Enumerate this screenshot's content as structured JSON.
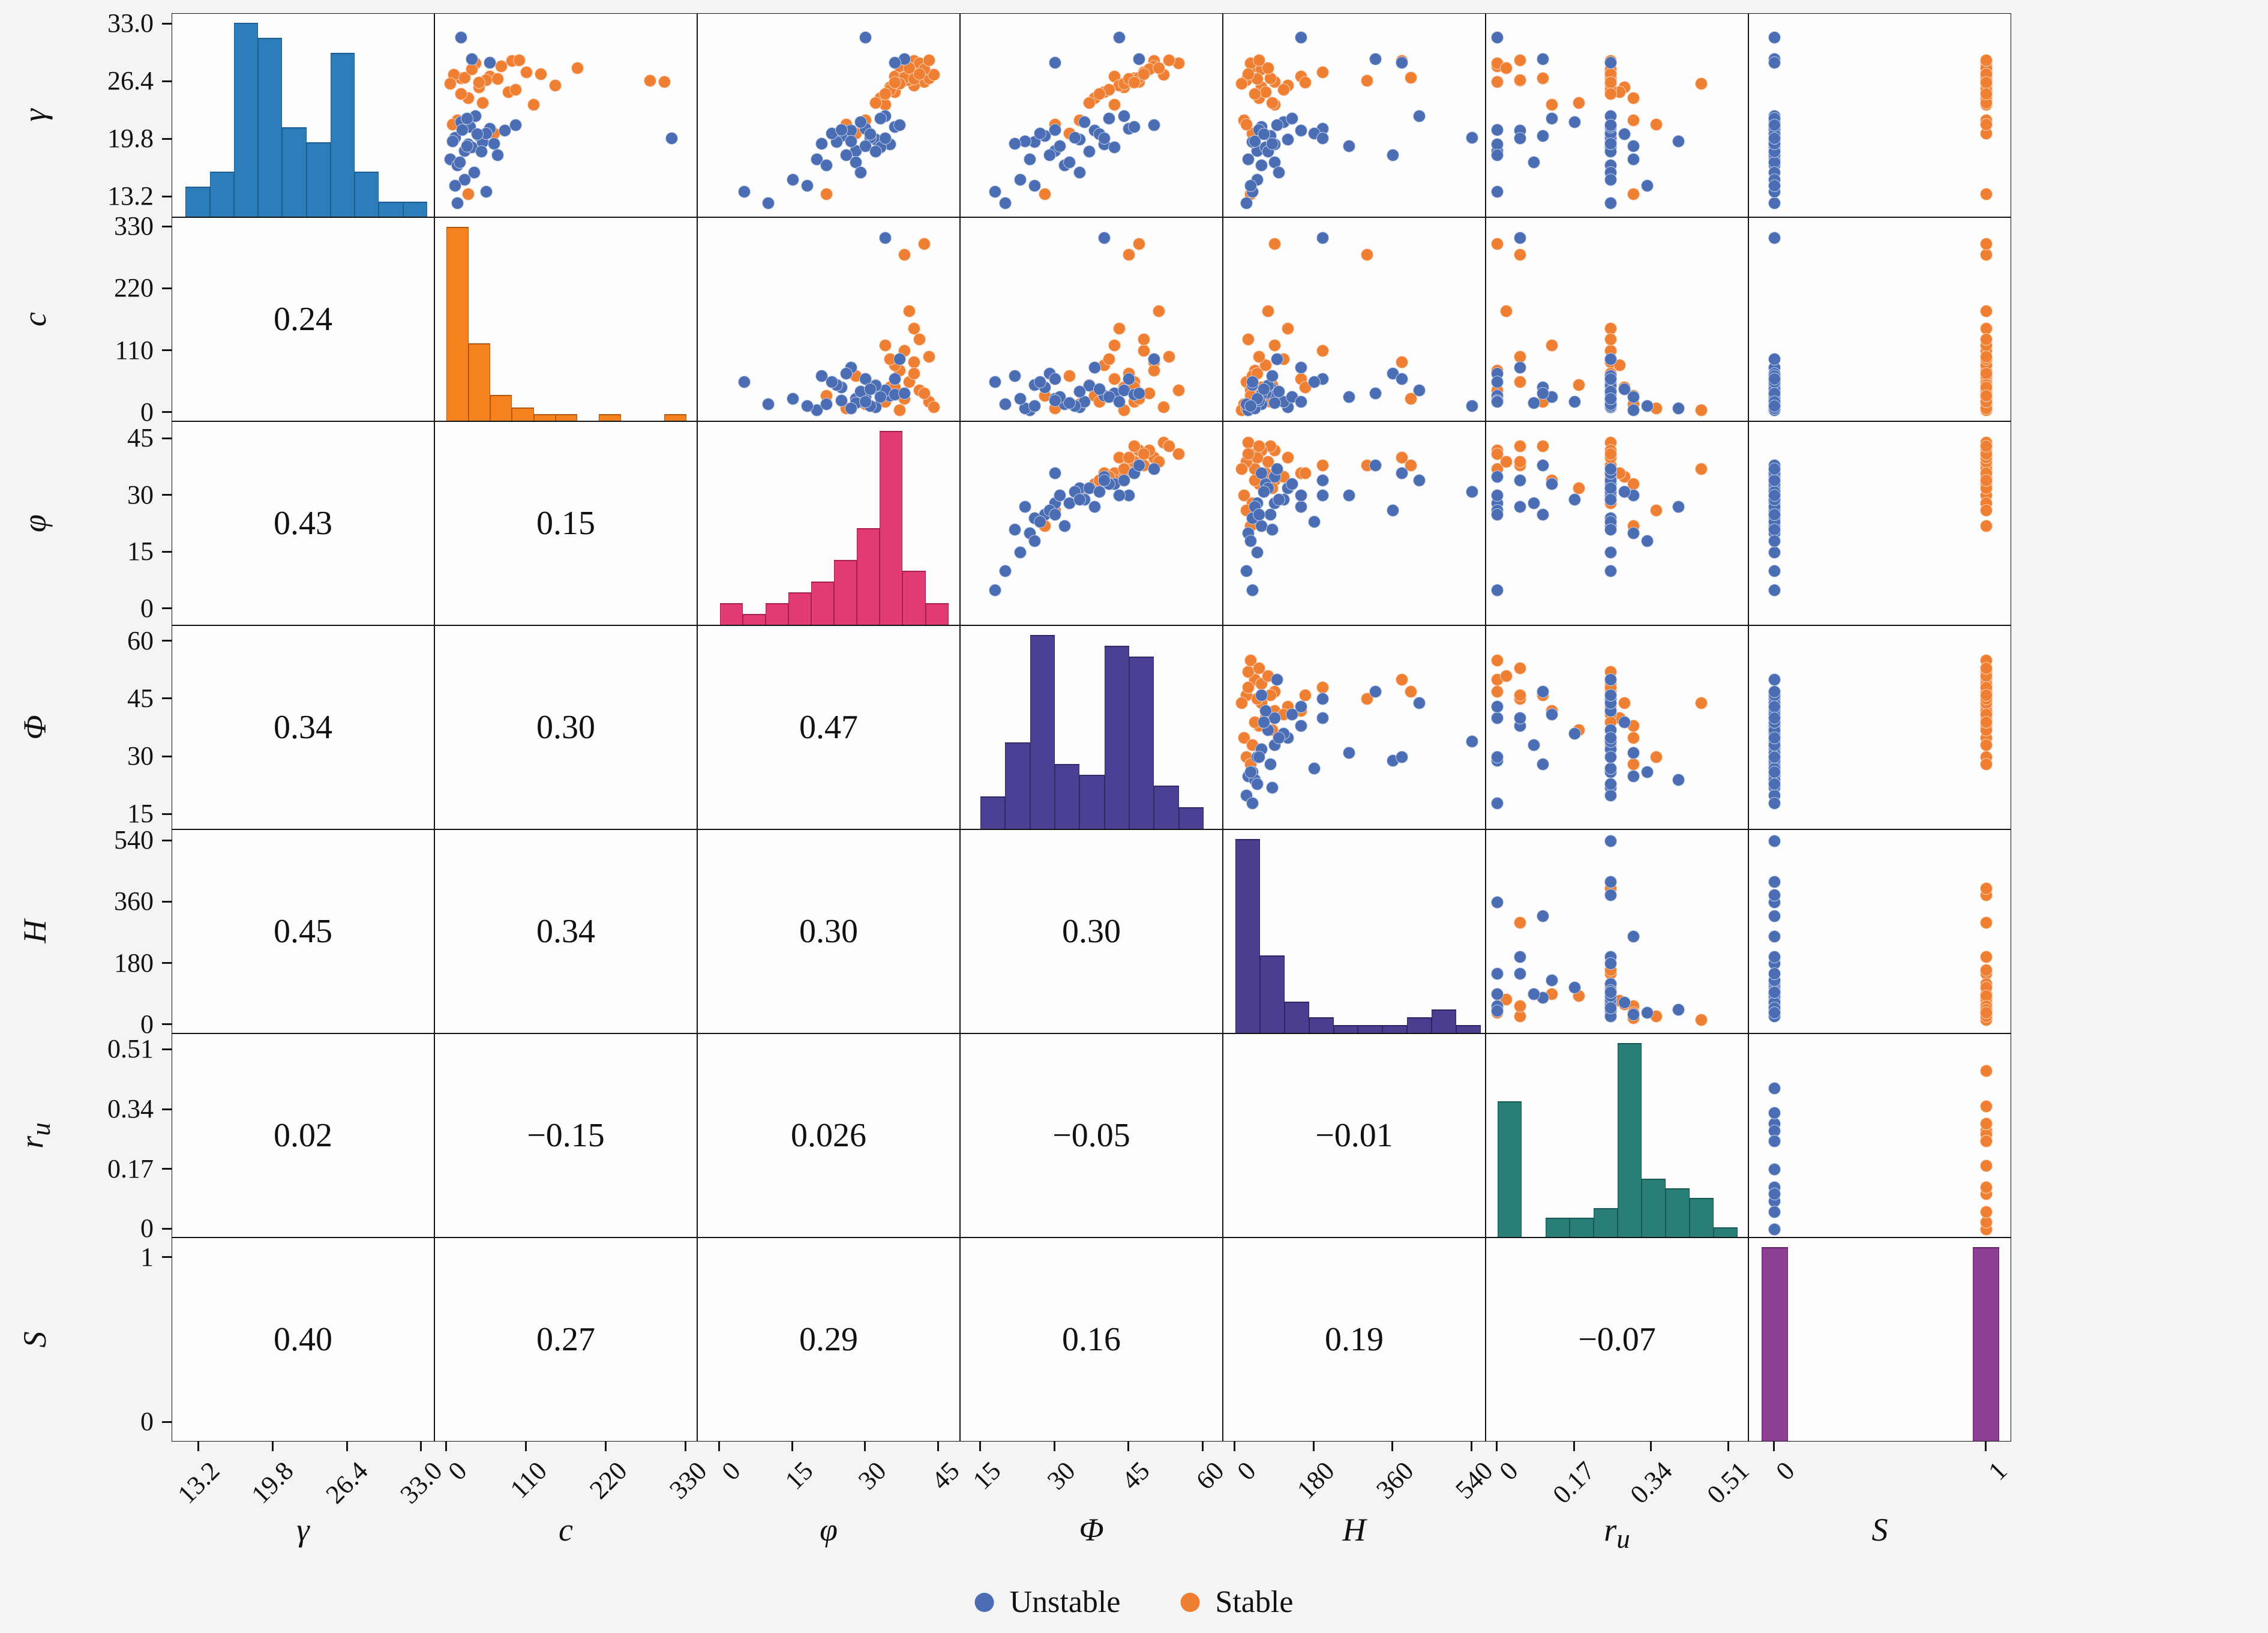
{
  "figure": {
    "background": "#f4f4f5",
    "panel_bg": "#fdfdfd",
    "border_color": "#141414"
  },
  "legend": {
    "items": [
      {
        "label": "Unstable",
        "color": "#4a6db4"
      },
      {
        "label": "Stable",
        "color": "#ef7f33"
      }
    ],
    "position": "bottom-center"
  },
  "chart_data": {
    "type": "scatter",
    "subtype": "pair-plot scatter matrix (upper triangle scatter, diagonal histograms, lower triangle Pearson correlations)",
    "grid": false,
    "classes": {
      "0": "Unstable",
      "1": "Stable"
    },
    "point_colors": {
      "Unstable": "#4a6db4",
      "Stable": "#ef7f33"
    },
    "variables": [
      {
        "key": "gamma",
        "label_html": "γ",
        "domain": [
          10.8,
          34.2
        ],
        "ticks": [
          13.2,
          19.8,
          26.4,
          33.0
        ],
        "tick_labels": [
          "13.2",
          "19.8",
          "26.4",
          "33.0"
        ],
        "hist": {
          "color": "#2d7dbb",
          "edge": "#1c5d92",
          "start": 12.0,
          "width": 2.15,
          "counts": [
            2,
            3,
            13,
            12,
            6,
            5,
            11,
            3,
            1,
            1
          ]
        }
      },
      {
        "key": "c",
        "label_html": "c",
        "domain": [
          -16,
          346
        ],
        "ticks": [
          0,
          110,
          220,
          330
        ],
        "tick_labels": [
          "0",
          "110",
          "220",
          "330"
        ],
        "hist": {
          "color": "#f5821f",
          "edge": "#b35a10",
          "start": 0,
          "width": 30,
          "counts": [
            30,
            12,
            4,
            2,
            1,
            1,
            0,
            1,
            0,
            0,
            1
          ]
        }
      },
      {
        "key": "phi",
        "label_html": "φ",
        "domain": [
          -4.5,
          49.5
        ],
        "ticks": [
          0,
          15,
          30,
          45
        ],
        "tick_labels": [
          "0",
          "15",
          "30",
          "45"
        ],
        "hist": {
          "color": "#e23a72",
          "edge": "#a81f4e",
          "start": 0,
          "width": 4.7,
          "counts": [
            2,
            1,
            2,
            3,
            4,
            6,
            9,
            18,
            5,
            2
          ]
        }
      },
      {
        "key": "Phi",
        "label_html": "Φ",
        "domain": [
          11,
          64
        ],
        "ticks": [
          15,
          30,
          45,
          60
        ],
        "tick_labels": [
          "15",
          "30",
          "45",
          "60"
        ],
        "hist": {
          "color": "#4a4194",
          "edge": "#2f2a66",
          "start": 15,
          "width": 5,
          "counts": [
            3,
            8,
            18,
            6,
            5,
            17,
            16,
            4,
            2
          ]
        }
      },
      {
        "key": "H",
        "label_html": "H",
        "domain": [
          -27,
          572
        ],
        "ticks": [
          0,
          180,
          360,
          540
        ],
        "tick_labels": [
          "0",
          "180",
          "360",
          "540"
        ],
        "hist": {
          "color": "#4b3d90",
          "edge": "#2e2460",
          "start": 0,
          "width": 56,
          "counts": [
            25,
            10,
            4,
            2,
            1,
            1,
            1,
            2,
            3,
            1
          ]
        }
      },
      {
        "key": "ru",
        "label_html": "r<sub>u</sub>",
        "domain": [
          -0.025,
          0.555
        ],
        "ticks": [
          0,
          0.17,
          0.34,
          0.51
        ],
        "tick_labels": [
          "0",
          "0.17",
          "0.34",
          "0.51"
        ],
        "hist": {
          "color": "#2a7f78",
          "edge": "#175a54",
          "start": 0,
          "width": 0.053,
          "counts": [
            14,
            0,
            2,
            2,
            3,
            20,
            6,
            5,
            4,
            1
          ]
        }
      },
      {
        "key": "S",
        "label_html": "S",
        "domain": [
          -0.12,
          1.12
        ],
        "ticks": [
          0,
          1
        ],
        "tick_labels": [
          "0",
          "1"
        ],
        "hist": {
          "color": "#8c3f94",
          "edge": "#5e2663",
          "start": -0.06,
          "width": 0.1245,
          "counts": [
            34,
            0,
            0,
            0,
            0,
            0,
            0,
            0,
            34
          ]
        }
      }
    ],
    "correlations": [
      [
        "0.24"
      ],
      [
        "0.43",
        "0.15"
      ],
      [
        "0.34",
        "0.30",
        "0.47"
      ],
      [
        "0.45",
        "0.34",
        "0.30",
        "0.30"
      ],
      [
        "0.02",
        "−0.15",
        "0.026",
        "−0.05",
        "−0.01"
      ],
      [
        "0.40",
        "0.27",
        "0.29",
        "0.16",
        "0.19",
        "−0.07"
      ]
    ],
    "samples": {
      "columns": [
        "gamma",
        "c",
        "phi",
        "Phi",
        "H",
        "ru",
        "S"
      ],
      "rows": [
        [
          26.5,
          280,
          38,
          45,
          300,
          0.05,
          1
        ],
        [
          28.8,
          90,
          40,
          50,
          380,
          0.25,
          1
        ],
        [
          27.0,
          60,
          36,
          42,
          150,
          0.25,
          1
        ],
        [
          26.4,
          300,
          42,
          47,
          90,
          0.0,
          1
        ],
        [
          25.8,
          45,
          35,
          44,
          60,
          0.28,
          1
        ],
        [
          27.5,
          110,
          38,
          48,
          200,
          0.25,
          1
        ],
        [
          26.8,
          20,
          43,
          46,
          80,
          0.1,
          1
        ],
        [
          28.2,
          75,
          37,
          50,
          45,
          0.0,
          1
        ],
        [
          26.0,
          150,
          40,
          43,
          120,
          0.25,
          1
        ],
        [
          24.5,
          30,
          33,
          38,
          55,
          0.3,
          1
        ],
        [
          27.2,
          10,
          44,
          52,
          30,
          0.25,
          1
        ],
        [
          26.6,
          55,
          39,
          46,
          25,
          0.05,
          1
        ],
        [
          25.2,
          85,
          36,
          40,
          70,
          0.27,
          1
        ],
        [
          28.5,
          40,
          41,
          55,
          35,
          0.0,
          1
        ],
        [
          26.9,
          25,
          38,
          47,
          400,
          0.25,
          1
        ],
        [
          22.0,
          15,
          30,
          35,
          20,
          0.3,
          1
        ],
        [
          20.5,
          65,
          28,
          33,
          40,
          0.25,
          1
        ],
        [
          23.8,
          120,
          34,
          42,
          90,
          0.12,
          1
        ],
        [
          27.8,
          35,
          42,
          49,
          60,
          0.25,
          1
        ],
        [
          26.2,
          5,
          37,
          44,
          15,
          0.45,
          1
        ],
        [
          25.5,
          95,
          35,
          41,
          110,
          0.25,
          1
        ],
        [
          28.0,
          180,
          39,
          51,
          75,
          0.02,
          1
        ],
        [
          26.7,
          70,
          40,
          45,
          50,
          0.25,
          1
        ],
        [
          24.0,
          50,
          32,
          37,
          85,
          0.18,
          1
        ],
        [
          27.3,
          130,
          41,
          48,
          30,
          0.25,
          1
        ],
        [
          21.5,
          8,
          26,
          30,
          25,
          0.35,
          1
        ],
        [
          26.3,
          45,
          36,
          46,
          160,
          0.25,
          1
        ],
        [
          28.9,
          100,
          43,
          53,
          55,
          0.05,
          1
        ],
        [
          25.0,
          20,
          34,
          39,
          45,
          0.25,
          1
        ],
        [
          13.5,
          30,
          22,
          28,
          35,
          0.3,
          1
        ],
        [
          18.5,
          25,
          28,
          30,
          50,
          0.0,
          0
        ],
        [
          19.8,
          10,
          32,
          35,
          120,
          0.25,
          0
        ],
        [
          20.2,
          45,
          25,
          28,
          80,
          0.1,
          0
        ],
        [
          17.5,
          5,
          20,
          25,
          30,
          0.3,
          0
        ],
        [
          21.0,
          60,
          30,
          45,
          200,
          0.25,
          0
        ],
        [
          19.2,
          30,
          35,
          40,
          90,
          0.0,
          0
        ],
        [
          16.8,
          15,
          22,
          32,
          60,
          0.25,
          0
        ],
        [
          20.8,
          80,
          27,
          38,
          150,
          0.05,
          0
        ],
        [
          18.9,
          35,
          33,
          42,
          70,
          0.25,
          0
        ],
        [
          21.8,
          20,
          29,
          36,
          110,
          0.17,
          0
        ],
        [
          19.5,
          50,
          24,
          26,
          40,
          0.25,
          0
        ],
        [
          20.0,
          12,
          31,
          34,
          540,
          0.25,
          0
        ],
        [
          18.0,
          70,
          26,
          29,
          360,
          0.0,
          0
        ],
        [
          22.5,
          40,
          34,
          44,
          420,
          0.25,
          0
        ],
        [
          19.0,
          28,
          30,
          31,
          260,
          0.3,
          0
        ],
        [
          20.5,
          55,
          23,
          27,
          180,
          0.25,
          0
        ],
        [
          17.2,
          18,
          28,
          33,
          90,
          0.08,
          0
        ],
        [
          21.2,
          32,
          36,
          46,
          60,
          0.25,
          0
        ],
        [
          19.6,
          8,
          27,
          24,
          45,
          0.4,
          0
        ],
        [
          18.4,
          48,
          32,
          37,
          75,
          0.25,
          0
        ],
        [
          20.9,
          22,
          25,
          30,
          55,
          0.0,
          0
        ],
        [
          16.0,
          38,
          29,
          35,
          100,
          0.25,
          0
        ],
        [
          22.2,
          28,
          33,
          41,
          130,
          0.12,
          0
        ],
        [
          19.3,
          65,
          21,
          22,
          85,
          0.25,
          0
        ],
        [
          20.4,
          42,
          31,
          39,
          65,
          0.28,
          0
        ],
        [
          12.5,
          15,
          10,
          20,
          25,
          0.25,
          0
        ],
        [
          13.8,
          55,
          5,
          18,
          40,
          0.0,
          0
        ],
        [
          15.2,
          25,
          15,
          23,
          50,
          0.25,
          0
        ],
        [
          29.0,
          35,
          38,
          47,
          320,
          0.1,
          0
        ],
        [
          28.6,
          60,
          36,
          30,
          380,
          0.25,
          0
        ],
        [
          31.5,
          20,
          30,
          43,
          150,
          0.0,
          0
        ],
        [
          19.9,
          310,
          34,
          40,
          200,
          0.05,
          0
        ],
        [
          21.4,
          95,
          37,
          50,
          95,
          0.25,
          0
        ],
        [
          14.5,
          12,
          18,
          26,
          35,
          0.33,
          0
        ]
      ]
    }
  }
}
